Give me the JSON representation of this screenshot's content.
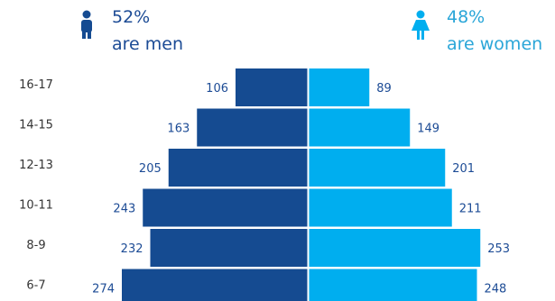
{
  "colors": {
    "men": "#154b91",
    "women": "#00aeef",
    "value_text": "#1c4b95",
    "age_text": "#333333",
    "men_head": "#1c4b95",
    "women_head": "#2aa6d8"
  },
  "header": {
    "men": {
      "icon": "male-person-icon",
      "percent": "52%",
      "label": "are men"
    },
    "women": {
      "icon": "female-person-icon",
      "percent": "48%",
      "label": "are women"
    }
  },
  "chart_data": {
    "type": "bar",
    "orientation": "horizontal-diverging",
    "categories": [
      "16-17",
      "14-15",
      "12-13",
      "10-11",
      "8-9",
      "6-7"
    ],
    "series": [
      {
        "name": "men",
        "values": [
          106,
          163,
          205,
          243,
          232,
          274
        ]
      },
      {
        "name": "women",
        "values": [
          89,
          149,
          201,
          211,
          253,
          248
        ]
      }
    ]
  }
}
